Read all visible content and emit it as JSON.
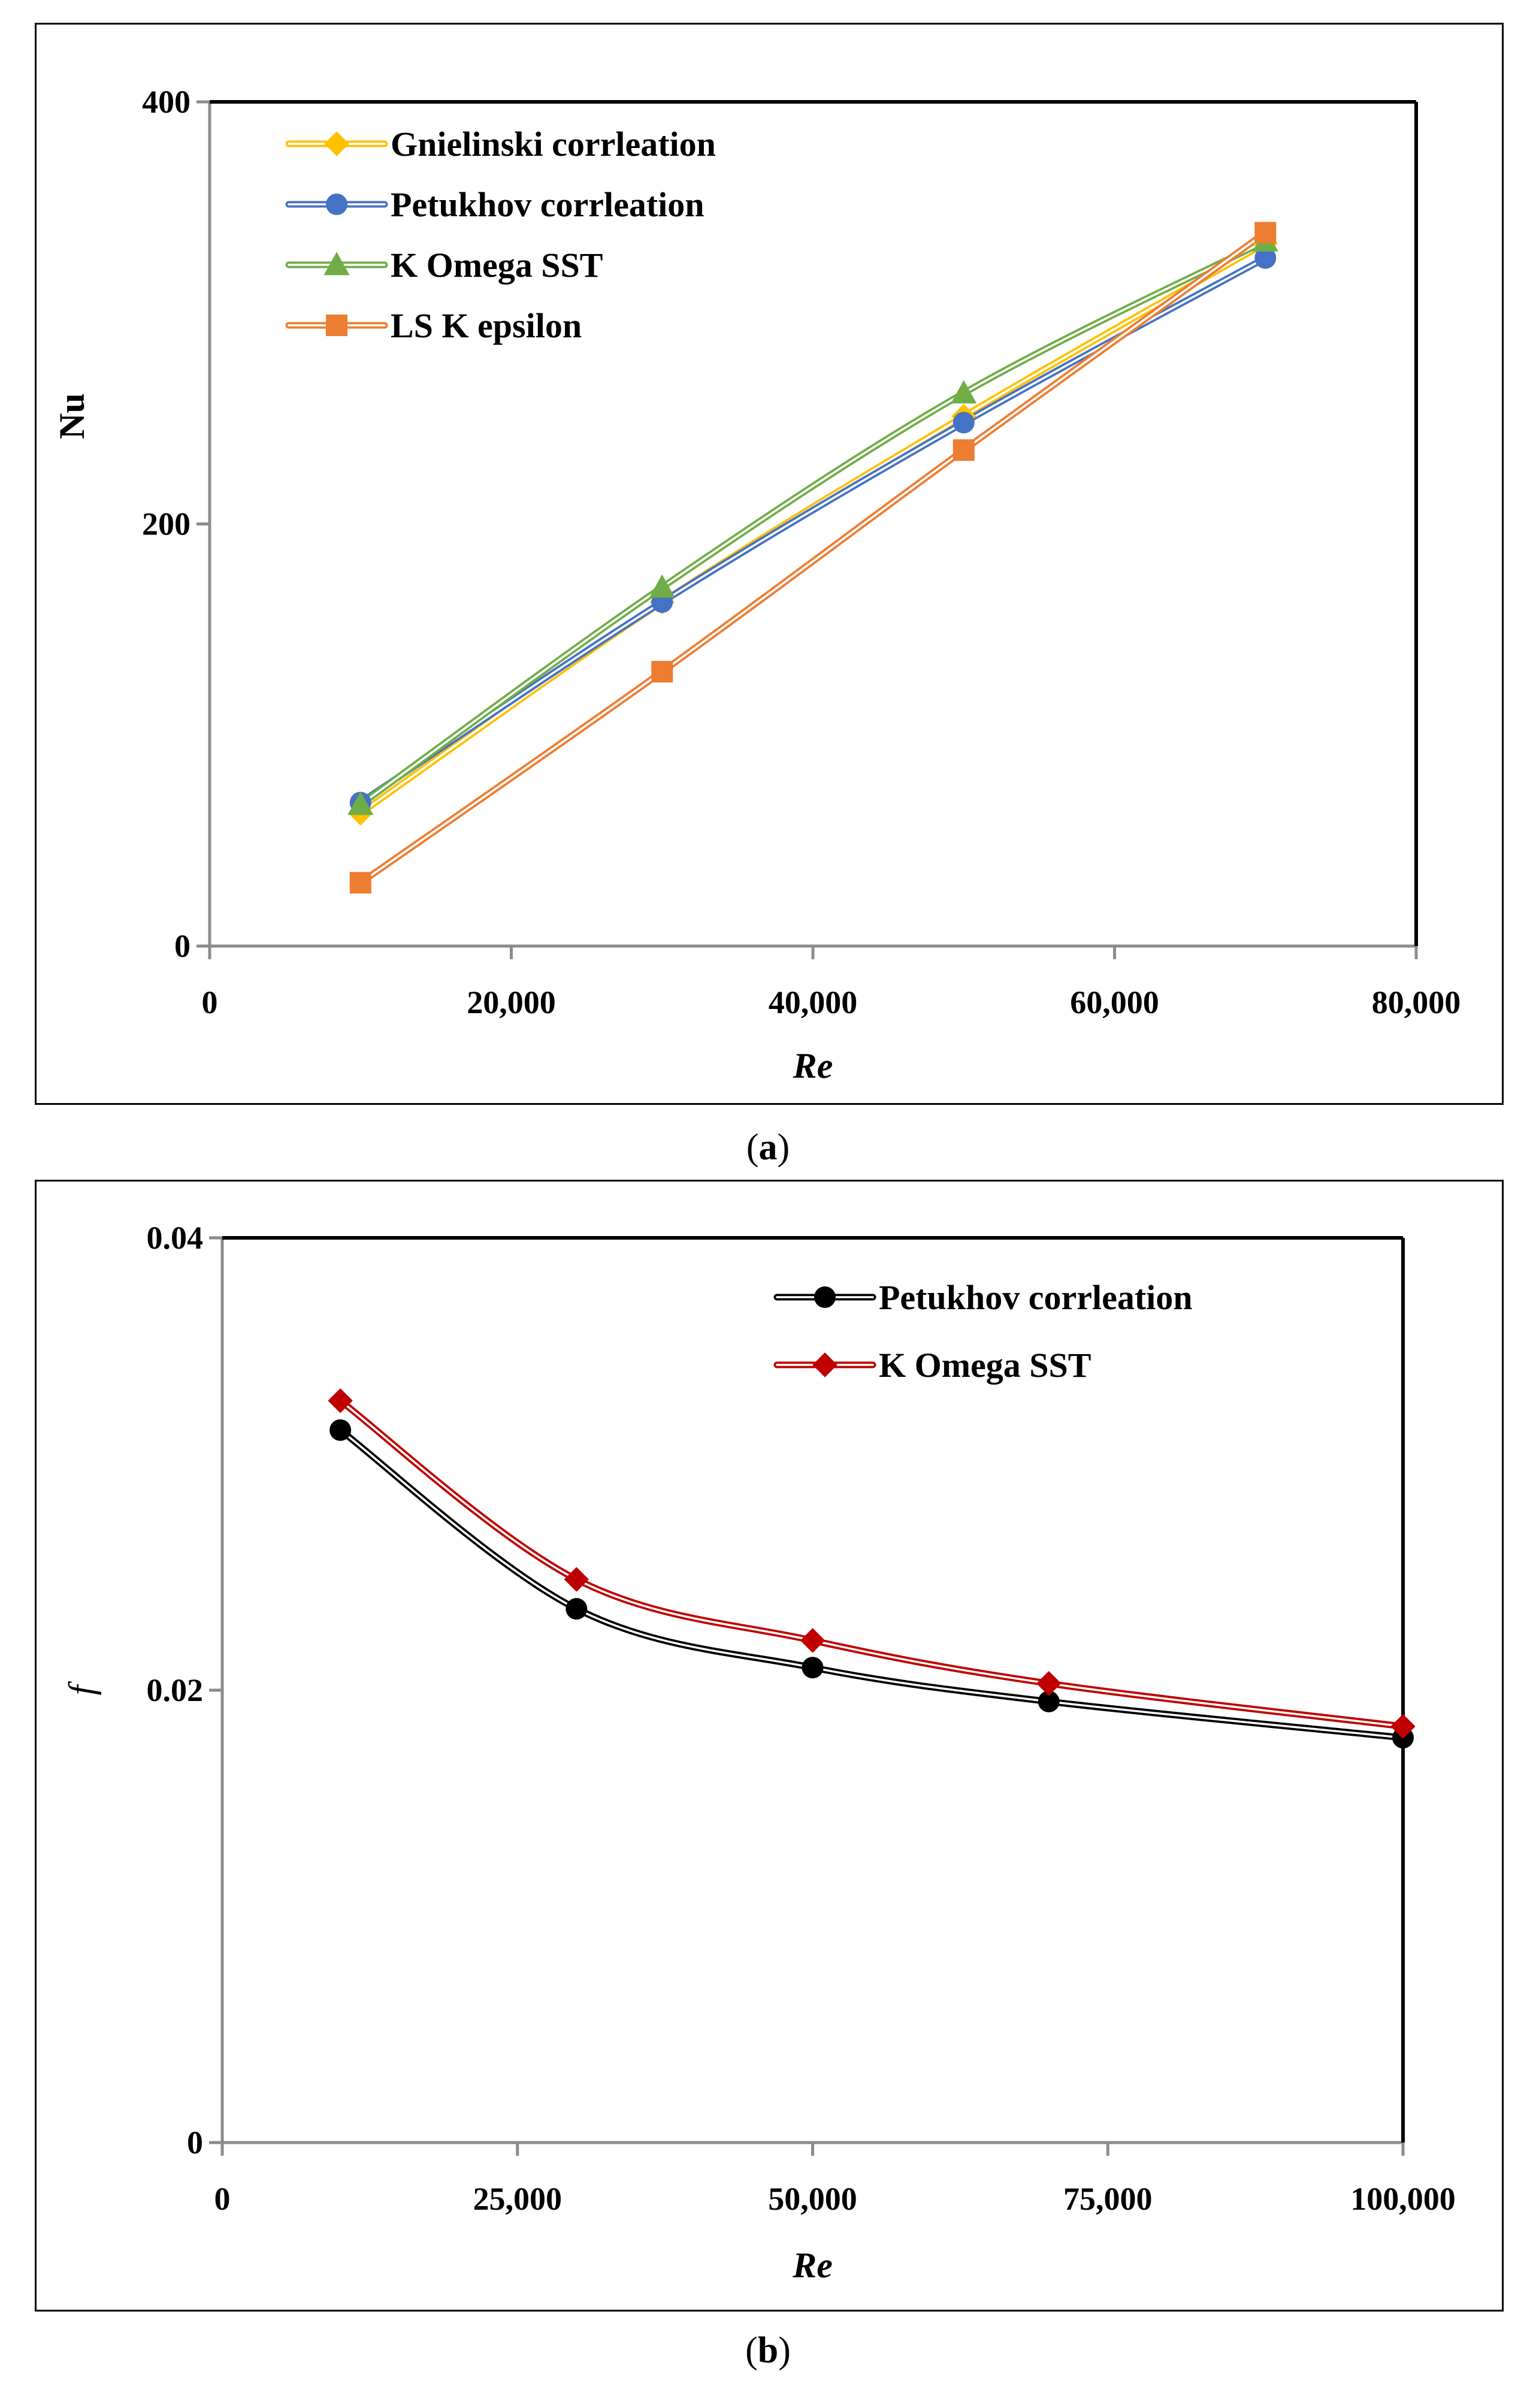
{
  "captions": {
    "a_letter": "a",
    "b_letter": "b"
  },
  "chart_data": [
    {
      "type": "line",
      "xlabel": "Re",
      "ylabel": "Nu",
      "xlim": [
        0,
        80000
      ],
      "ylim": [
        0,
        400
      ],
      "xticks": [
        0,
        20000,
        40000,
        60000,
        80000
      ],
      "xtick_labels": [
        "0",
        "20,000",
        "40,000",
        "60,000",
        "80,000"
      ],
      "yticks": [
        0,
        200,
        400
      ],
      "ytick_labels": [
        "0",
        "200",
        "400"
      ],
      "legend_position": "top-left",
      "grid": false,
      "series": [
        {
          "name": "Gnielinski corrleation",
          "color": "#FFC000",
          "marker": "diamond",
          "x": [
            10000,
            30000,
            50000,
            70000
          ],
          "y": [
            63,
            163,
            251,
            333
          ]
        },
        {
          "name": "Petukhov corrleation",
          "color": "#4472C4",
          "marker": "circle",
          "x": [
            10000,
            30000,
            50000,
            70000
          ],
          "y": [
            68,
            163,
            248,
            326
          ]
        },
        {
          "name": "K Omega SST",
          "color": "#70AD47",
          "marker": "triangle",
          "x": [
            10000,
            30000,
            50000,
            70000
          ],
          "y": [
            67,
            170,
            262,
            334
          ]
        },
        {
          "name": "LS K epsilon",
          "color": "#ED7D31",
          "marker": "square",
          "x": [
            10000,
            30000,
            50000,
            70000
          ],
          "y": [
            30,
            130,
            235,
            338
          ]
        }
      ]
    },
    {
      "type": "line",
      "xlabel": "Re",
      "ylabel": "f",
      "xlim": [
        0,
        100000
      ],
      "ylim": [
        0,
        0.04
      ],
      "xticks": [
        0,
        25000,
        50000,
        75000,
        100000
      ],
      "xtick_labels": [
        "0",
        "25,000",
        "50,000",
        "75,000",
        "100,000"
      ],
      "yticks": [
        0,
        0.02,
        0.04
      ],
      "ytick_labels": [
        "0",
        "0.02",
        "0.04"
      ],
      "legend_position": "top-right",
      "grid": false,
      "series": [
        {
          "name": "Petukhov corrleation",
          "color": "#000000",
          "marker": "circle",
          "x": [
            10000,
            30000,
            50000,
            70000,
            100000
          ],
          "y": [
            0.0315,
            0.0236,
            0.021,
            0.0195,
            0.0179
          ]
        },
        {
          "name": "K Omega SST",
          "color": "#C00000",
          "marker": "diamond",
          "x": [
            10000,
            30000,
            50000,
            70000,
            100000
          ],
          "y": [
            0.0328,
            0.0249,
            0.0222,
            0.0203,
            0.0184
          ]
        }
      ]
    }
  ]
}
